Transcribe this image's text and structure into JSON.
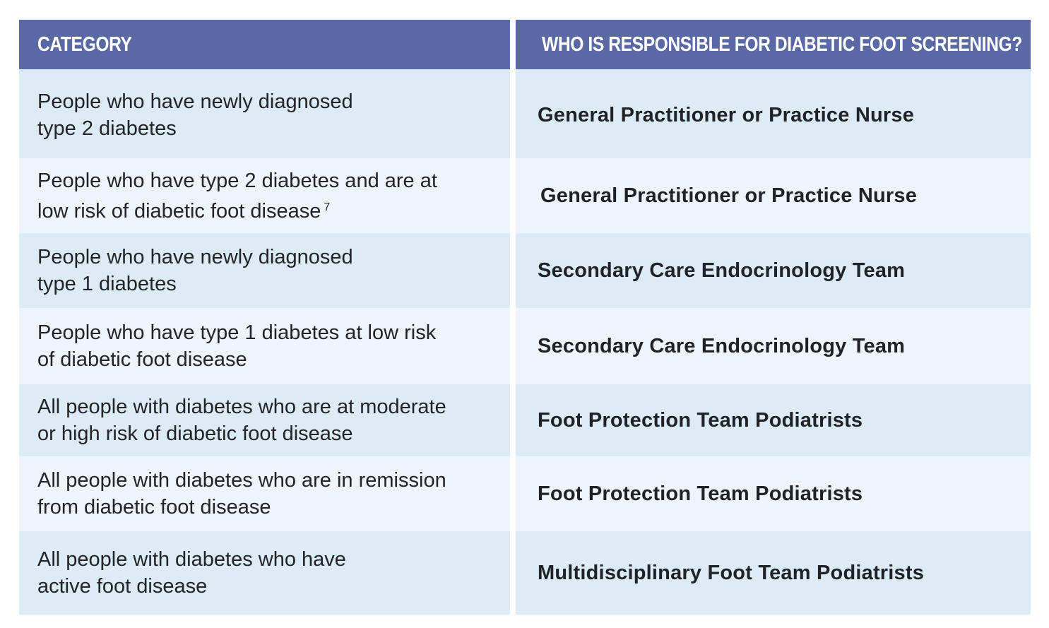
{
  "header": {
    "category": "CATEGORY",
    "responsible": "WHO IS RESPONSIBLE FOR DIABETIC FOOT SCREENING?"
  },
  "rows": [
    {
      "category": "People who have newly diagnosed\ntype 2 diabetes",
      "footnote": "",
      "responsible": "General Practitioner or Practice Nurse"
    },
    {
      "category": "People who have type 2 diabetes and are at\nlow risk of diabetic foot disease",
      "footnote": "7",
      "responsible": "General Practitioner or Practice Nurse"
    },
    {
      "category": "People who have newly diagnosed\ntype 1 diabetes",
      "footnote": "",
      "responsible": "Secondary Care Endocrinology Team"
    },
    {
      "category": "People who have type 1 diabetes at low risk\nof diabetic foot disease",
      "footnote": "",
      "responsible": "Secondary Care Endocrinology Team"
    },
    {
      "category": "All people with diabetes who are at moderate\nor high risk of diabetic foot disease",
      "footnote": "",
      "responsible": "Foot Protection Team Podiatrists"
    },
    {
      "category": "All people with diabetes who are in remission\nfrom diabetic foot disease",
      "footnote": "",
      "responsible": "Foot Protection Team Podiatrists"
    },
    {
      "category": "All people with diabetes who have\nactive foot disease",
      "footnote": "",
      "responsible": "Multidisciplinary Foot Team Podiatrists"
    }
  ],
  "colors": {
    "header_bg": "#5a68a6",
    "row_dark": "#dcebf6",
    "row_light": "#eef4fa"
  }
}
